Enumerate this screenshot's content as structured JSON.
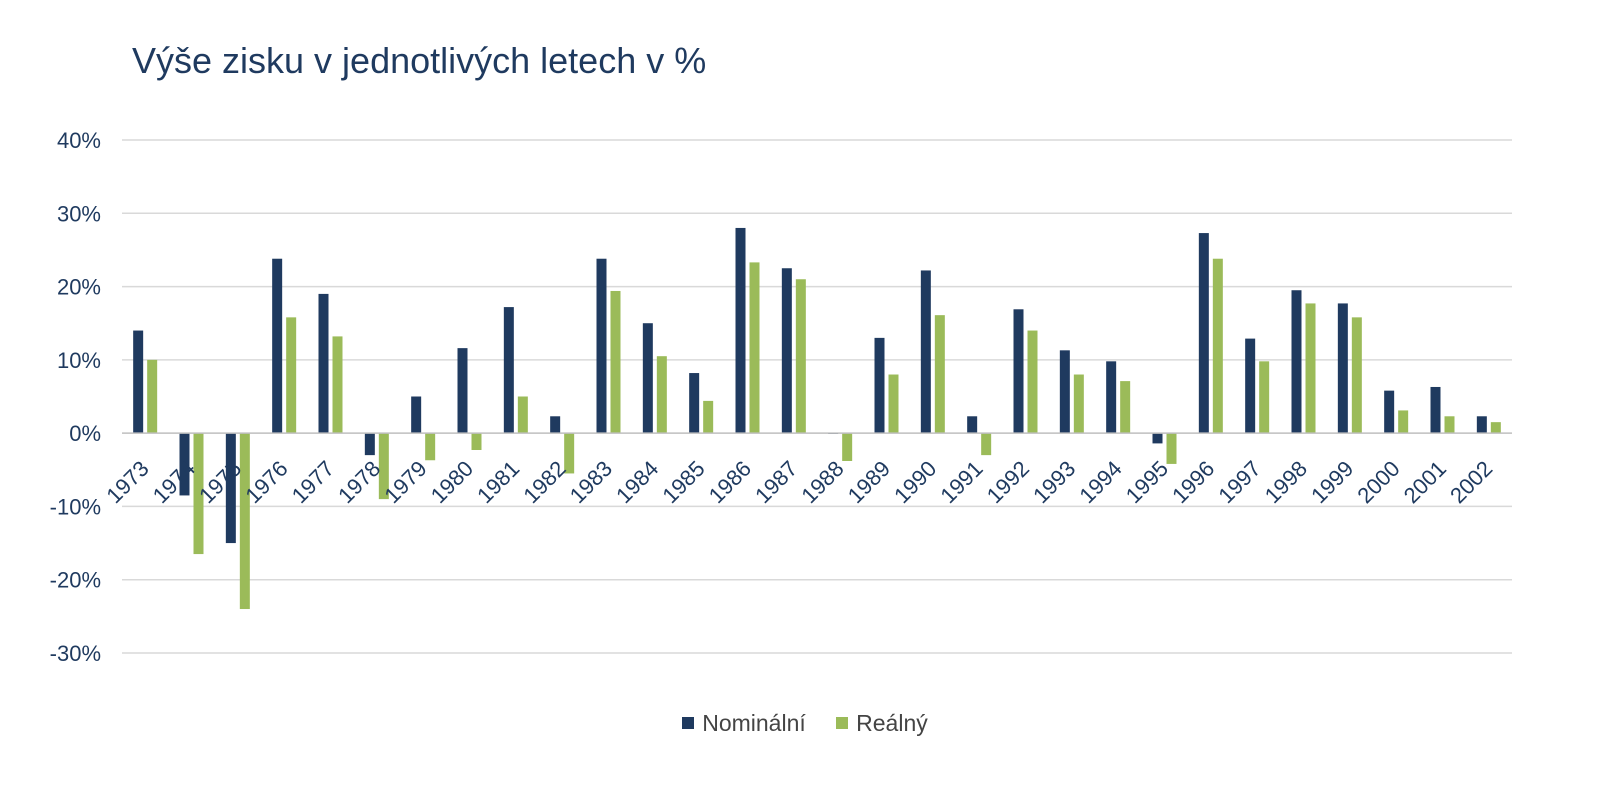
{
  "chart_data": {
    "type": "bar",
    "title": "Výše zisku v jednotlivých letech v %",
    "xlabel": "",
    "ylabel": "",
    "ylim": [
      -30,
      40
    ],
    "y_ticks": [
      "40%",
      "30%",
      "20%",
      "10%",
      "0%",
      "-10%",
      "-20%",
      "-30%"
    ],
    "y_tick_values": [
      40,
      30,
      20,
      10,
      0,
      -10,
      -20,
      -30
    ],
    "grid": true,
    "legend_position": "bottom",
    "categories": [
      "1973",
      "1974",
      "1975",
      "1976",
      "1977",
      "1978",
      "1979",
      "1980",
      "1981",
      "1982",
      "1983",
      "1984",
      "1985",
      "1986",
      "1987",
      "1988",
      "1989",
      "1990",
      "1991",
      "1992",
      "1993",
      "1994",
      "1995",
      "1996",
      "1997",
      "1998",
      "1999",
      "2000",
      "2001",
      "2002"
    ],
    "series": [
      {
        "name": "Nominální",
        "color": "#1f3a5f",
        "values": [
          14,
          -8.5,
          -15,
          23.8,
          19,
          -3,
          5,
          11.6,
          17.2,
          2.3,
          23.8,
          15,
          8.2,
          28,
          22.5,
          0,
          13,
          22.2,
          2.3,
          16.9,
          11.3,
          9.8,
          -1.4,
          27.3,
          12.9,
          19.5,
          17.7,
          5.8,
          6.3,
          2.3
        ]
      },
      {
        "name": "Reálný",
        "color": "#9bbb59",
        "values": [
          10,
          -16.5,
          -24,
          15.8,
          13.2,
          -9,
          -3.7,
          -2.3,
          5,
          -5.5,
          19.4,
          10.5,
          4.4,
          23.3,
          21,
          -3.8,
          8,
          16.1,
          -3,
          14,
          8,
          7.1,
          -4.2,
          23.8,
          9.8,
          17.7,
          15.8,
          3.1,
          2.3,
          1.5
        ]
      }
    ]
  }
}
